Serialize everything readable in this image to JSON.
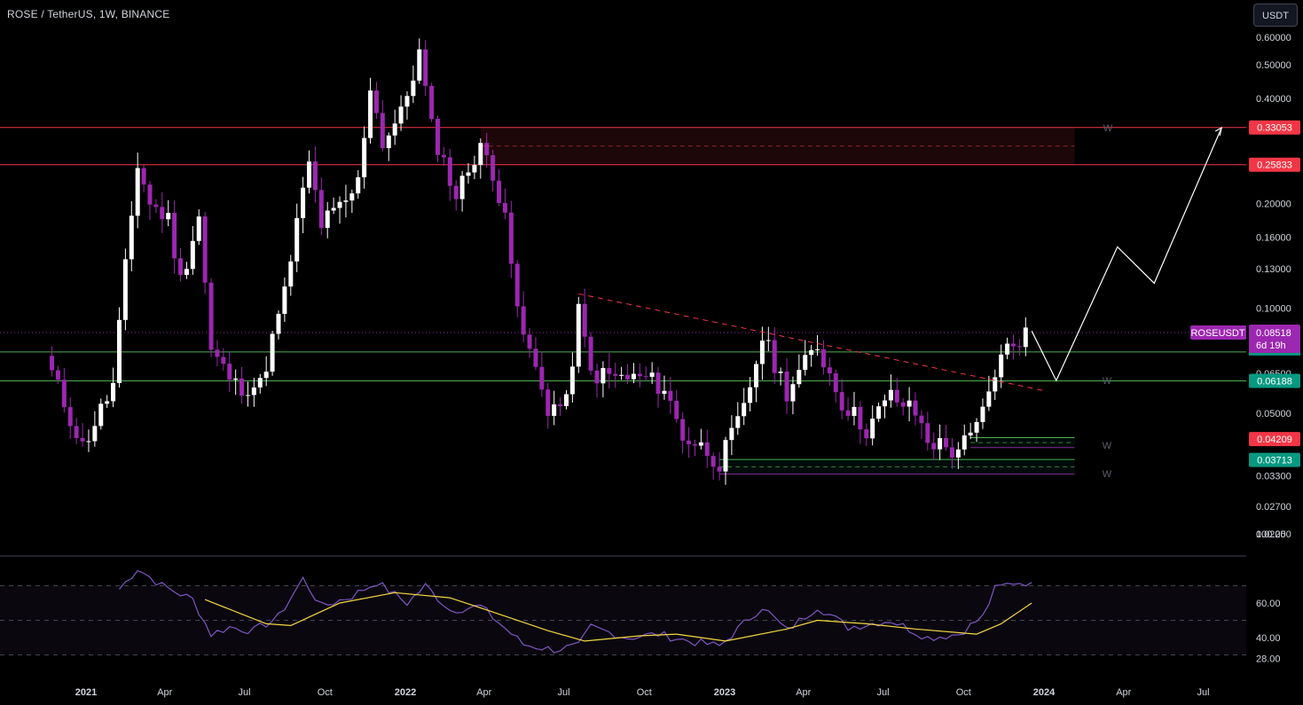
{
  "header": {
    "symbol_title": "ROSE / TetherUS, 1W, BINANCE",
    "currency_label": "USDT"
  },
  "colors": {
    "background": "#000000",
    "candle_up": "#ffffff",
    "candle_down": "#9c27b0",
    "resistance_line": "#f23645",
    "support_line": "#4caf50",
    "rsi_line": "#7e57c2",
    "rsi_ma_line": "#f5d742",
    "projection_line": "#ffffff",
    "price_tag": "#9c27b0"
  },
  "chart_data": [
    {
      "type": "candlestick",
      "symbol": "ROSEUSDT",
      "timeframe": "1W",
      "y_scale": "log",
      "ylim": [
        0.0205,
        0.64
      ],
      "y_ticks": [
        "0.60000",
        "0.50000",
        "0.40000",
        "0.20000",
        "0.16000",
        "0.13000",
        "0.10000",
        "0.06500",
        "0.05000",
        "0.03300",
        "0.02700",
        "0.02250"
      ],
      "y_tick_values": [
        0.6,
        0.5,
        0.4,
        0.2,
        0.16,
        0.13,
        0.1,
        0.065,
        0.05,
        0.033,
        0.027,
        0.0225
      ],
      "x_ticks": [
        "2021",
        "Apr",
        "Jul",
        "Oct",
        "2022",
        "Apr",
        "Jul",
        "Oct",
        "2023",
        "Apr",
        "Jul",
        "Oct",
        "2024",
        "Apr",
        "Jul"
      ],
      "x_tick_dates": [
        "2021-01-01",
        "2021-04-01",
        "2021-07-01",
        "2021-10-01",
        "2022-01-01",
        "2022-04-01",
        "2022-07-01",
        "2022-10-01",
        "2023-01-01",
        "2023-04-01",
        "2023-07-01",
        "2023-10-01",
        "2024-01-01",
        "2024-04-01",
        "2024-07-01"
      ],
      "price_anchors": [
        [
          "2020-11-23",
          0.065
        ],
        [
          "2020-12-28",
          0.04
        ],
        [
          "2021-02-01",
          0.06
        ],
        [
          "2021-02-15",
          0.13
        ],
        [
          "2021-03-01",
          0.26
        ],
        [
          "2021-03-15",
          0.2
        ],
        [
          "2021-04-05",
          0.18
        ],
        [
          "2021-04-19",
          0.12
        ],
        [
          "2021-05-10",
          0.185
        ],
        [
          "2021-05-24",
          0.075
        ],
        [
          "2021-06-21",
          0.06
        ],
        [
          "2021-07-19",
          0.06
        ],
        [
          "2021-08-16",
          0.11
        ],
        [
          "2021-08-30",
          0.175
        ],
        [
          "2021-09-13",
          0.26
        ],
        [
          "2021-09-27",
          0.175
        ],
        [
          "2021-10-25",
          0.2
        ],
        [
          "2021-11-08",
          0.23
        ],
        [
          "2021-11-22",
          0.44
        ],
        [
          "2021-12-06",
          0.3
        ],
        [
          "2021-12-27",
          0.36
        ],
        [
          "2022-01-17",
          0.54
        ],
        [
          "2022-01-31",
          0.33
        ],
        [
          "2022-02-28",
          0.21
        ],
        [
          "2022-03-28",
          0.3
        ],
        [
          "2022-04-11",
          0.23
        ],
        [
          "2022-04-25",
          0.2
        ],
        [
          "2022-05-09",
          0.095
        ],
        [
          "2022-06-13",
          0.052
        ],
        [
          "2022-07-04",
          0.053
        ],
        [
          "2022-07-18",
          0.098
        ],
        [
          "2022-08-01",
          0.065
        ],
        [
          "2022-09-05",
          0.063
        ],
        [
          "2022-10-03",
          0.063
        ],
        [
          "2022-10-24",
          0.059
        ],
        [
          "2022-11-14",
          0.043
        ],
        [
          "2022-12-12",
          0.039
        ],
        [
          "2022-12-26",
          0.036
        ],
        [
          "2023-01-23",
          0.051
        ],
        [
          "2023-02-13",
          0.083
        ],
        [
          "2023-03-13",
          0.058
        ],
        [
          "2023-04-17",
          0.078
        ],
        [
          "2023-05-15",
          0.054
        ],
        [
          "2023-06-12",
          0.045
        ],
        [
          "2023-07-10",
          0.056
        ],
        [
          "2023-08-07",
          0.05
        ],
        [
          "2023-08-21",
          0.042
        ],
        [
          "2023-09-18",
          0.039
        ],
        [
          "2023-10-09",
          0.042
        ],
        [
          "2023-10-23",
          0.05
        ],
        [
          "2023-11-06",
          0.066
        ],
        [
          "2023-11-20",
          0.077
        ],
        [
          "2023-12-11",
          0.085
        ]
      ],
      "horizontal_levels": [
        {
          "label": "0.33053",
          "value": 0.33053,
          "color": "#f23645"
        },
        {
          "label": "0.25833",
          "value": 0.25833,
          "color": "#f23645"
        },
        {
          "value": 0.0749,
          "color": "#4caf50"
        },
        {
          "label": "0.06188",
          "value": 0.06188,
          "color": "#4caf50"
        },
        {
          "label": "0.04209",
          "value": 0.04209,
          "color": "#f23645"
        },
        {
          "label": "0.03713",
          "value": 0.03713,
          "color": "#089981"
        }
      ],
      "current_price": {
        "symbol": "ROSEUSDT",
        "price": "0.08518",
        "countdown": "6d 19h",
        "value": 0.08518
      },
      "resistance_zone": {
        "from": "2022-03-28",
        "to": "2024-02-05",
        "top": 0.33053,
        "bottom": 0.25833
      },
      "trendline": {
        "points": [
          [
            "2022-07-18",
            0.11
          ],
          [
            "2024-01-01",
            0.058
          ]
        ],
        "style": "dashed"
      },
      "projection_path": [
        [
          "2023-12-18",
          0.086
        ],
        [
          "2024-01-15",
          0.062
        ],
        [
          "2024-03-25",
          0.15
        ],
        [
          "2024-05-06",
          0.118
        ],
        [
          "2024-07-22",
          0.33
        ]
      ],
      "w_markers": [
        {
          "text": "W",
          "value": 0.33
        },
        {
          "text": "W",
          "value": 0.062
        },
        {
          "text": "W",
          "value": 0.0405
        },
        {
          "text": "W",
          "value": 0.0335
        }
      ],
      "support_boxes": [
        {
          "from": "2023-10-09",
          "to": "2024-02-05",
          "top": 0.0425,
          "bottom": 0.0398
        },
        {
          "from": "2022-12-26",
          "to": "2024-02-05",
          "top": 0.0368,
          "bottom": 0.0334
        }
      ]
    },
    {
      "type": "line",
      "name": "RSI",
      "ylim": [
        20,
        100
      ],
      "y_ticks": [
        "100.00",
        "60.00",
        "40.00",
        "28.00"
      ],
      "y_tick_values": [
        100,
        60,
        40,
        28
      ],
      "band_upper": 70,
      "band_mid": 50,
      "band_lower": 30,
      "rsi_anchors": [
        [
          "2021-02-08",
          68
        ],
        [
          "2021-03-01",
          80
        ],
        [
          "2021-03-29",
          70
        ],
        [
          "2021-05-03",
          62
        ],
        [
          "2021-05-24",
          42
        ],
        [
          "2021-06-14",
          46
        ],
        [
          "2021-07-12",
          44
        ],
        [
          "2021-08-09",
          52
        ],
        [
          "2021-09-06",
          74
        ],
        [
          "2021-09-27",
          58
        ],
        [
          "2021-11-01",
          64
        ],
        [
          "2021-11-29",
          72
        ],
        [
          "2022-01-03",
          60
        ],
        [
          "2022-01-24",
          70
        ],
        [
          "2022-02-21",
          56
        ],
        [
          "2022-03-28",
          58
        ],
        [
          "2022-05-16",
          36
        ],
        [
          "2022-06-20",
          33
        ],
        [
          "2022-07-18",
          35
        ],
        [
          "2022-08-01",
          46
        ],
        [
          "2022-09-12",
          40
        ],
        [
          "2022-10-17",
          42
        ],
        [
          "2022-11-21",
          38
        ],
        [
          "2022-12-26",
          35
        ],
        [
          "2023-02-13",
          58
        ],
        [
          "2023-03-13",
          44
        ],
        [
          "2023-04-17",
          58
        ],
        [
          "2023-05-22",
          46
        ],
        [
          "2023-07-10",
          50
        ],
        [
          "2023-08-21",
          40
        ],
        [
          "2023-09-25",
          42
        ],
        [
          "2023-10-23",
          52
        ],
        [
          "2023-11-06",
          68
        ],
        [
          "2023-11-27",
          72
        ],
        [
          "2023-12-11",
          72
        ],
        [
          "2023-12-18",
          70
        ]
      ],
      "ma_anchors": [
        [
          "2021-05-17",
          62
        ],
        [
          "2021-07-26",
          48
        ],
        [
          "2021-08-23",
          47
        ],
        [
          "2021-10-18",
          60
        ],
        [
          "2021-12-20",
          66
        ],
        [
          "2022-02-21",
          63
        ],
        [
          "2022-04-04",
          56
        ],
        [
          "2022-06-13",
          44
        ],
        [
          "2022-07-25",
          38
        ],
        [
          "2022-09-26",
          41
        ],
        [
          "2022-11-07",
          42
        ],
        [
          "2023-01-02",
          38
        ],
        [
          "2023-03-13",
          45
        ],
        [
          "2023-04-17",
          50
        ],
        [
          "2023-06-12",
          48
        ],
        [
          "2023-08-07",
          45
        ],
        [
          "2023-10-16",
          42
        ],
        [
          "2023-11-13",
          48
        ],
        [
          "2023-12-18",
          60
        ]
      ]
    }
  ]
}
